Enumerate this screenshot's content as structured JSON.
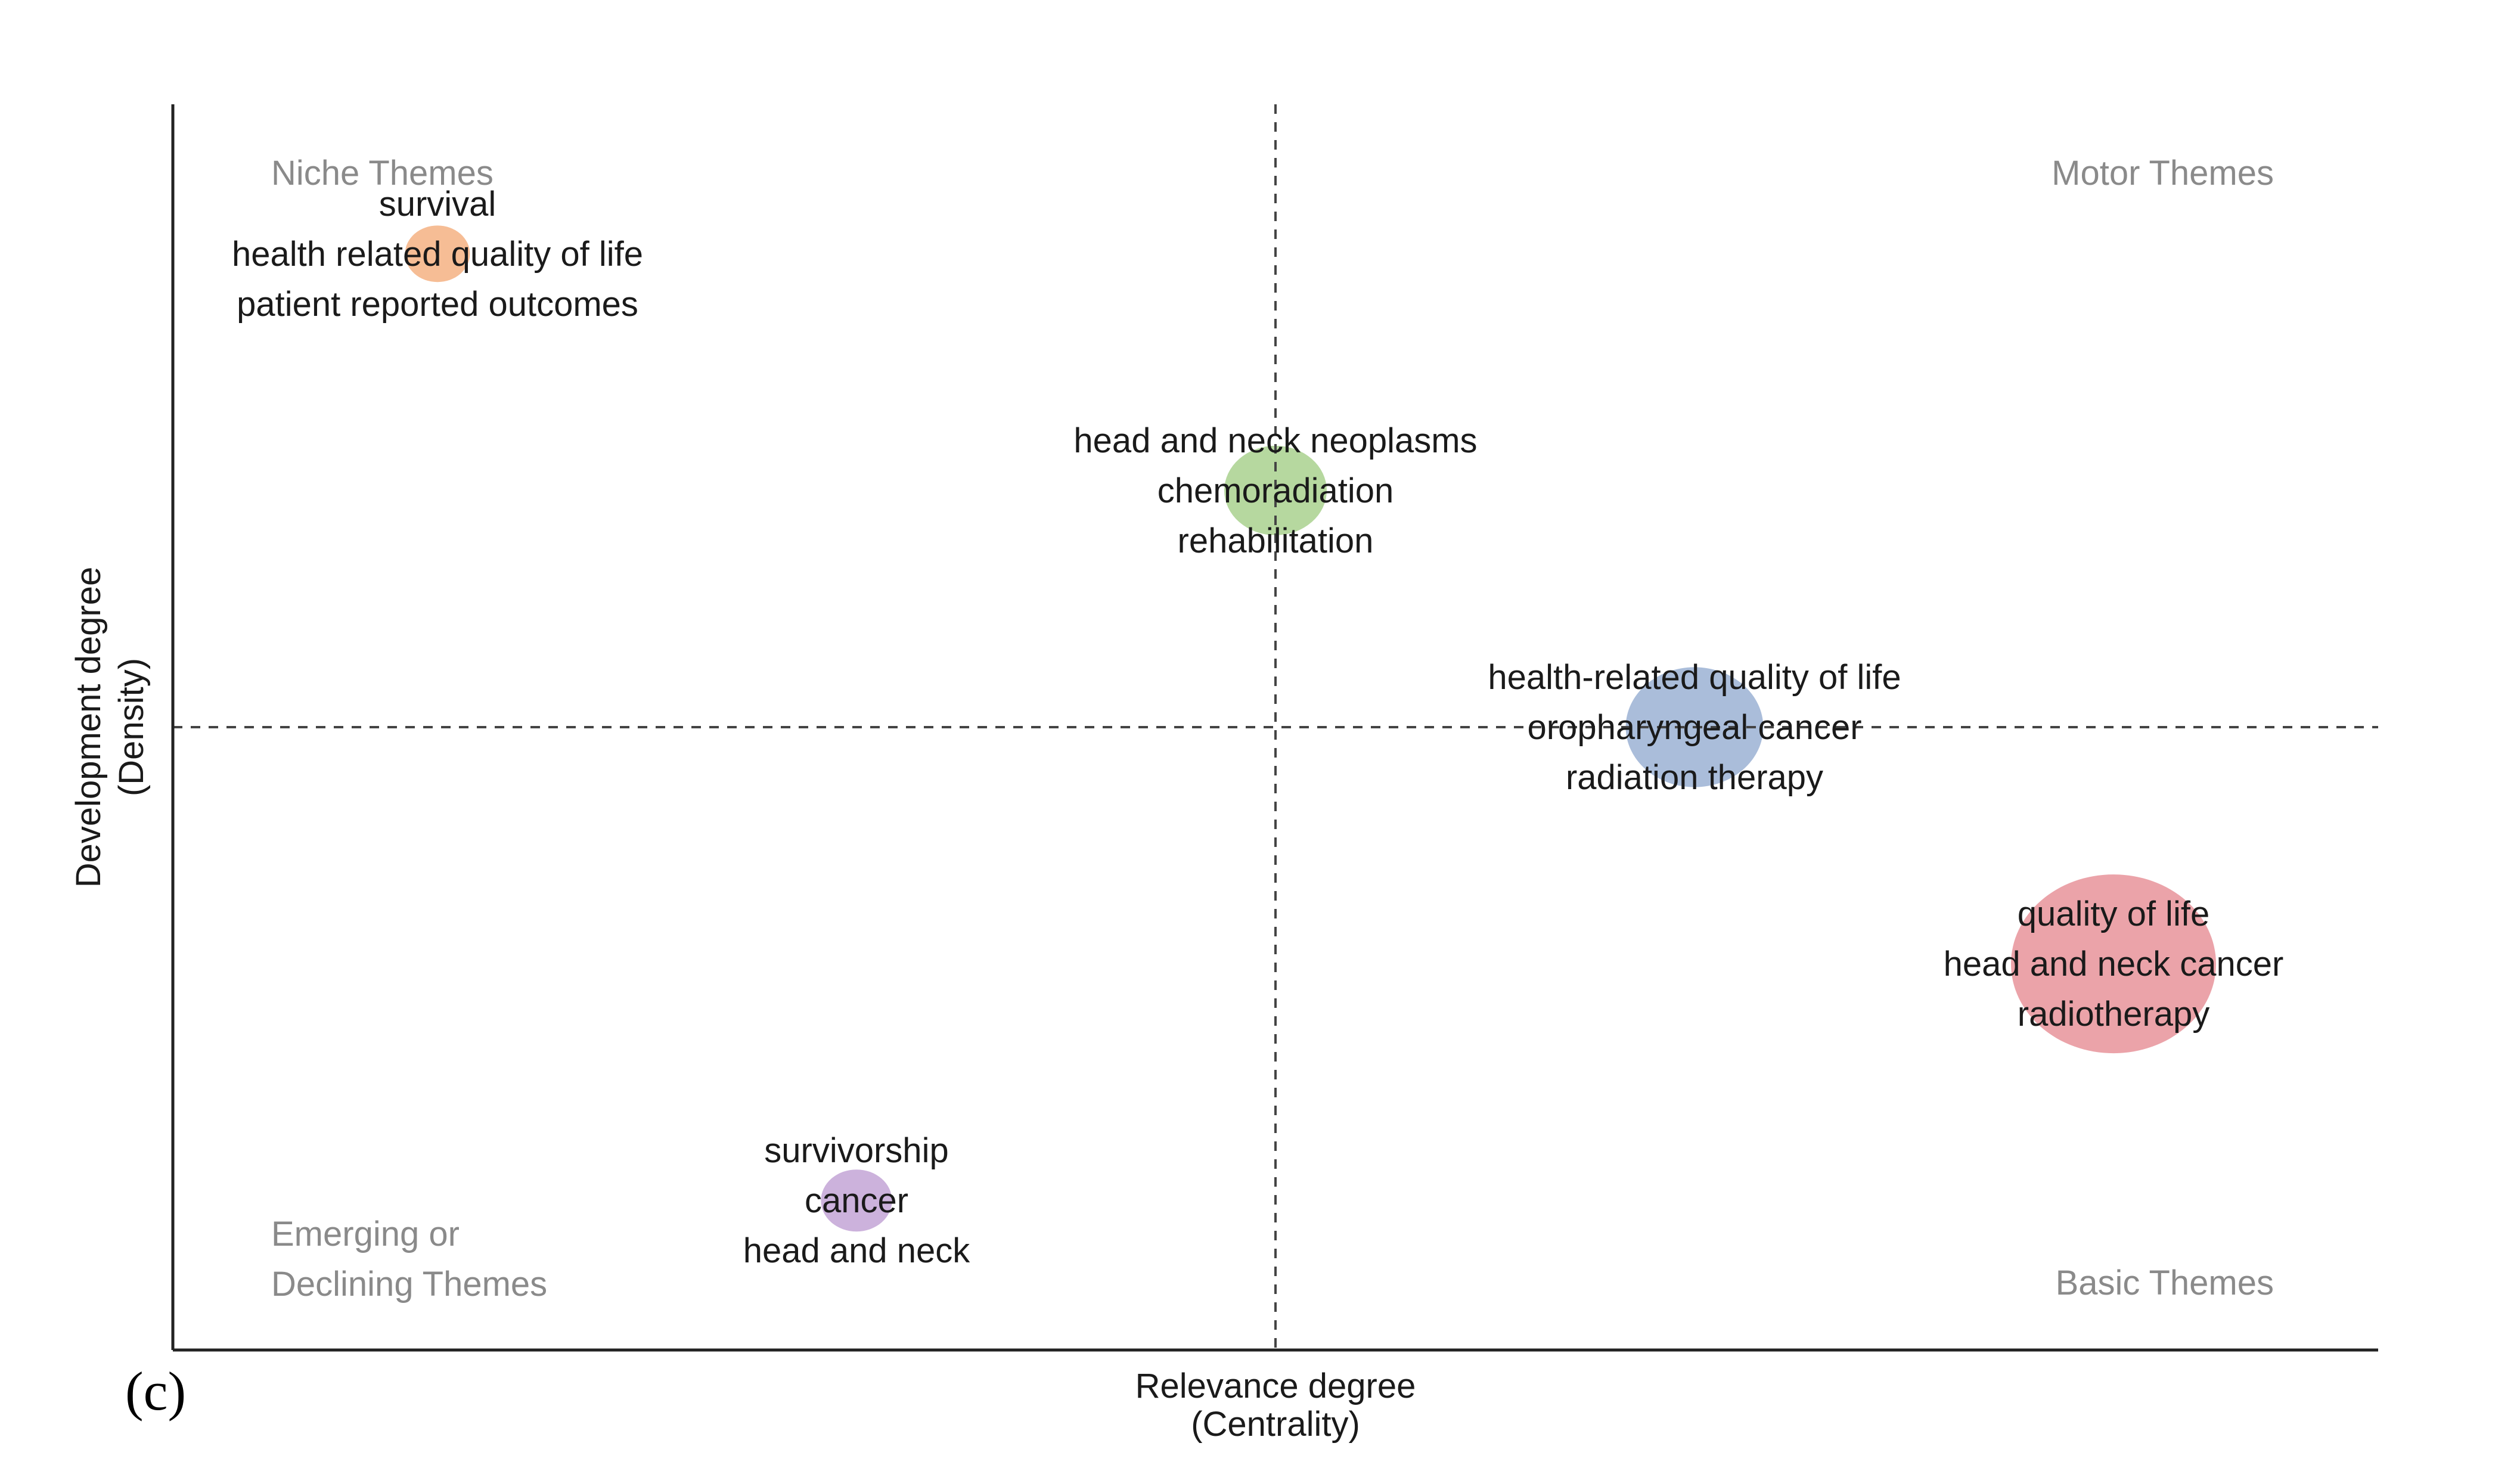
{
  "chart_data": {
    "type": "scatter",
    "panel_label": "(c)",
    "xlabel": [
      "Relevance degree",
      "(Centrality)"
    ],
    "ylabel": [
      "Development degree",
      "(Density)"
    ],
    "xlim": [
      0,
      1
    ],
    "ylim": [
      0,
      1
    ],
    "grid": false,
    "reference_lines": {
      "x": 0.5,
      "y": 0.5
    },
    "quadrant_labels": {
      "top_left": [
        "Niche Themes"
      ],
      "top_right": [
        "Motor Themes"
      ],
      "bottom_left": [
        "Emerging or",
        "Declining Themes"
      ],
      "bottom_right": [
        "Basic Themes"
      ]
    },
    "series": [
      {
        "terms": [
          "survival",
          "health related quality of life",
          "patient reported outcomes"
        ],
        "x": 0.12,
        "y": 0.88,
        "size": 1,
        "color": "#f4b183"
      },
      {
        "terms": [
          "head and neck neoplasms",
          "chemoradiation",
          "rehabilitation"
        ],
        "x": 0.5,
        "y": 0.69,
        "size": 2.5,
        "color": "#a9d18e"
      },
      {
        "terms": [
          "health-related quality of life",
          "oropharyngeal cancer",
          "radiation therapy"
        ],
        "x": 0.69,
        "y": 0.5,
        "size": 4.5,
        "color": "#9bb1d4"
      },
      {
        "terms": [
          "quality of life",
          "head and neck cancer",
          "radiotherapy"
        ],
        "x": 0.88,
        "y": 0.31,
        "size": 10,
        "color": "#e8939a"
      },
      {
        "terms": [
          "survivorship",
          "cancer",
          "head and neck"
        ],
        "x": 0.31,
        "y": 0.12,
        "size": 1.2,
        "color": "#c3a5d6"
      }
    ]
  }
}
